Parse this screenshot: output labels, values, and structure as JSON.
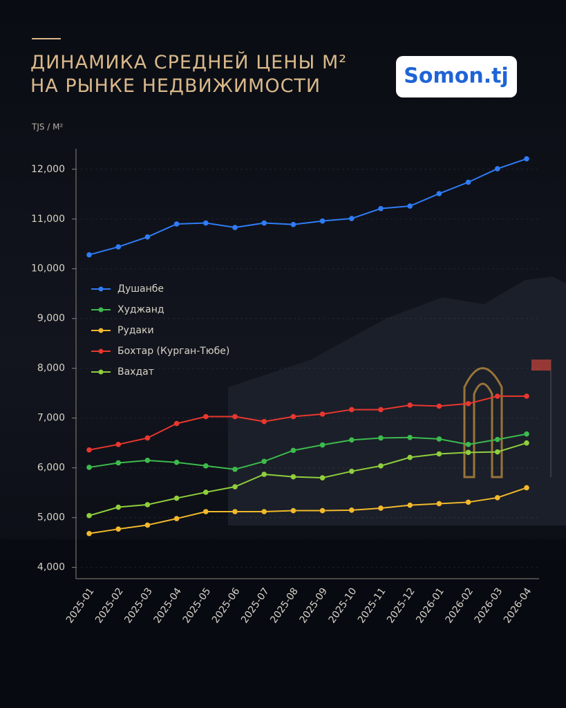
{
  "brand": "Somon.tj",
  "chart_data": {
    "type": "line",
    "title": "ДИНАМИКА СРЕДНЕЙ ЦЕНЫ М²\nНА РЫНКЕ НЕДВИЖИМОСТИ",
    "y_label": "TJS / M²",
    "categories": [
      "2025-01",
      "2025-02",
      "2025-03",
      "2025-04",
      "2025-05",
      "2025-06",
      "2025-07",
      "2025-08",
      "2025-09",
      "2025-10",
      "2025-11",
      "2025-12",
      "2026-01",
      "2026-02",
      "2026-03",
      "2026-04"
    ],
    "ylim": [
      3800,
      12400
    ],
    "yticks": [
      {
        "value": 4000,
        "label": "4,000"
      },
      {
        "value": 5000,
        "label": "5,000"
      },
      {
        "value": 6000,
        "label": "6,000"
      },
      {
        "value": 7000,
        "label": "7,000"
      },
      {
        "value": 8000,
        "label": "8,000"
      },
      {
        "value": 9000,
        "label": "9,000"
      },
      {
        "value": 10000,
        "label": "10,000"
      },
      {
        "value": 11000,
        "label": "11,000"
      },
      {
        "value": 12000,
        "label": "12,000"
      }
    ],
    "grid": true,
    "legend": "left",
    "series": [
      {
        "name": "Душанбе",
        "color": "#2f7cf6",
        "values": [
          10280,
          10440,
          10640,
          10900,
          10920,
          10830,
          10920,
          10890,
          10960,
          11010,
          11210,
          11260,
          11510,
          11740,
          12010,
          12210
        ]
      },
      {
        "name": "Худжанд",
        "color": "#3dbb4d",
        "values": [
          6010,
          6100,
          6150,
          6110,
          6040,
          5970,
          6130,
          6350,
          6460,
          6560,
          6600,
          6610,
          6580,
          6470,
          6570,
          6680
        ]
      },
      {
        "name": "Рудаки",
        "color": "#f2b92c",
        "values": [
          4680,
          4770,
          4850,
          4980,
          5120,
          5120,
          5120,
          5140,
          5140,
          5150,
          5190,
          5250,
          5280,
          5310,
          5400,
          5600
        ]
      },
      {
        "name": "Бохтар (Курган-Тюбе)",
        "color": "#e8372f",
        "values": [
          6360,
          6470,
          6600,
          6890,
          7030,
          7030,
          6930,
          7030,
          7080,
          7170,
          7170,
          7260,
          7240,
          7290,
          7440,
          7440
        ]
      },
      {
        "name": "Вахдат",
        "color": "#8fcf3c",
        "values": [
          5040,
          5210,
          5260,
          5390,
          5510,
          5620,
          5870,
          5820,
          5800,
          5930,
          6040,
          6210,
          6280,
          6310,
          6320,
          6500
        ]
      }
    ]
  }
}
